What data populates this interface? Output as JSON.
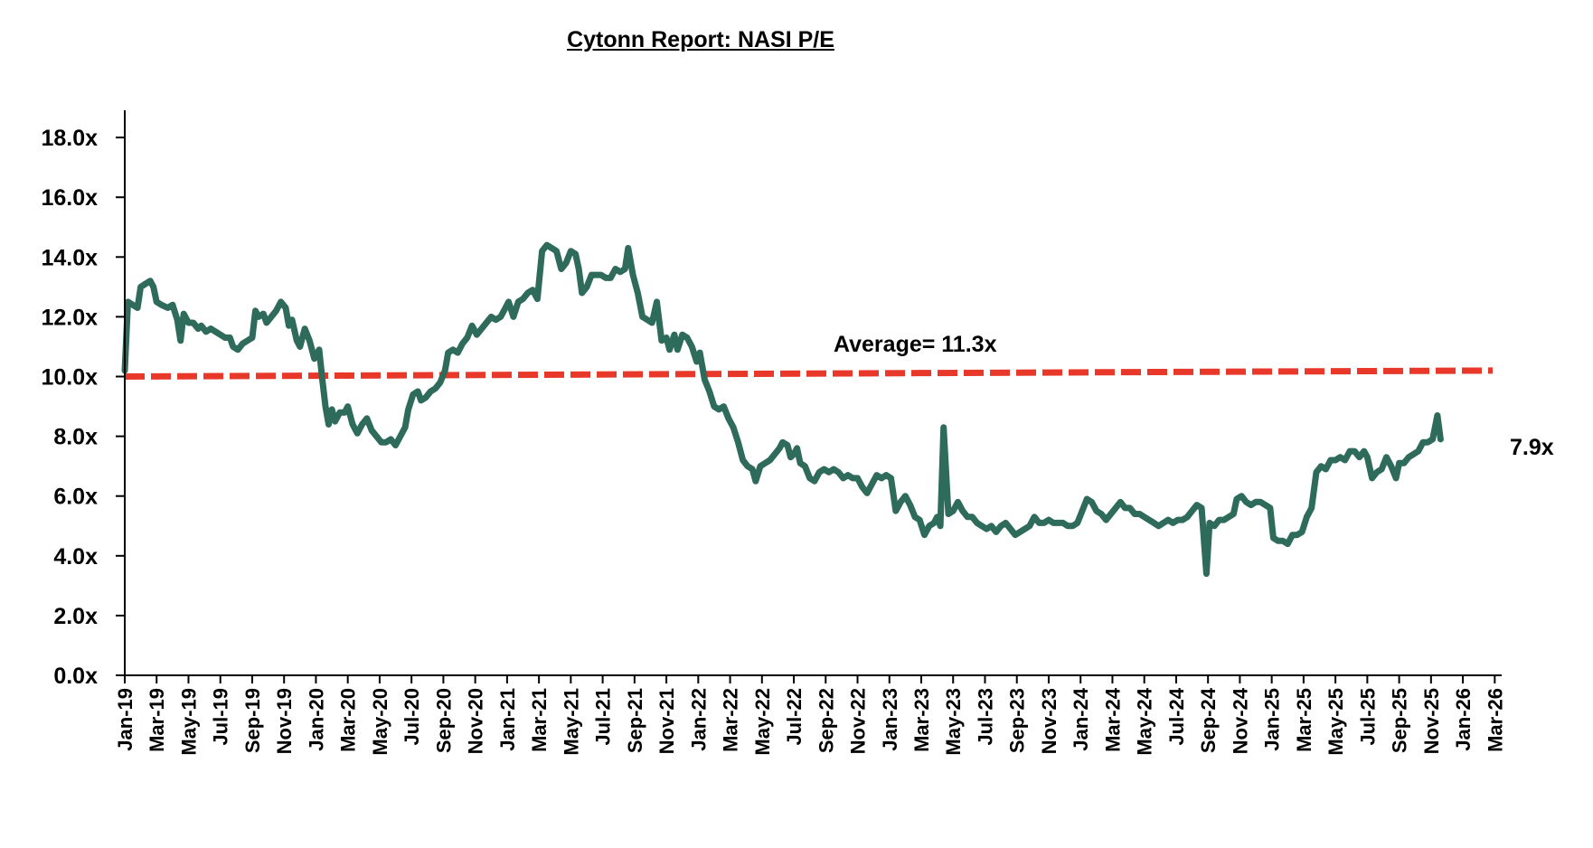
{
  "chart_data": {
    "type": "line",
    "title": "Cytonn Report: NASI P/E",
    "xlabel": "",
    "ylabel": "",
    "ylim": [
      0,
      19
    ],
    "yticks": [
      0,
      2,
      4,
      6,
      8,
      10,
      12,
      14,
      16,
      18
    ],
    "ytick_labels": [
      "0.0x",
      "2.0x",
      "4.0x",
      "6.0x",
      "8.0x",
      "10.0x",
      "12.0x",
      "14.0x",
      "16.0x",
      "18.0x"
    ],
    "x_start": "Jan-19",
    "x_unit": "months since Jan-19",
    "xlim": [
      0,
      87.5
    ],
    "xtick_labels": [
      "Jan-19",
      "Mar-19",
      "May-19",
      "Jul-19",
      "Sep-19",
      "Nov-19",
      "Jan-20",
      "Mar-20",
      "May-20",
      "Jul-20",
      "Sep-20",
      "Nov-20",
      "Jan-21",
      "Mar-21",
      "May-21",
      "Jul-21",
      "Sep-21",
      "Nov-21",
      "Jan-22",
      "Mar-22",
      "May-22",
      "Jul-22",
      "Sep-22",
      "Nov-22",
      "Jan-23",
      "Mar-23",
      "May-23",
      "Jul-23",
      "Sep-23",
      "Nov-23",
      "Jan-24",
      "Mar-24",
      "May-24",
      "Jul-24",
      "Sep-24",
      "Nov-24",
      "Jan-25",
      "Mar-25",
      "May-25",
      "Jul-25",
      "Sep-25",
      "Nov-25",
      "Jan-26",
      "Mar-26"
    ],
    "grid": false,
    "legend": "none",
    "series": [
      {
        "name": "NASI P/E",
        "color": "#2e6b5a",
        "points": [
          [
            0.0,
            10.2
          ],
          [
            0.2,
            12.5
          ],
          [
            0.5,
            12.4
          ],
          [
            0.8,
            12.3
          ],
          [
            1.0,
            13.0
          ],
          [
            1.3,
            13.1
          ],
          [
            1.6,
            13.2
          ],
          [
            1.8,
            13.0
          ],
          [
            2.0,
            12.5
          ],
          [
            2.3,
            12.4
          ],
          [
            2.7,
            12.3
          ],
          [
            3.0,
            12.4
          ],
          [
            3.3,
            11.9
          ],
          [
            3.5,
            11.2
          ],
          [
            3.7,
            12.1
          ],
          [
            4.0,
            11.8
          ],
          [
            4.3,
            11.8
          ],
          [
            4.6,
            11.6
          ],
          [
            4.8,
            11.7
          ],
          [
            5.1,
            11.5
          ],
          [
            5.4,
            11.6
          ],
          [
            5.7,
            11.5
          ],
          [
            6.0,
            11.4
          ],
          [
            6.3,
            11.3
          ],
          [
            6.6,
            11.3
          ],
          [
            6.8,
            11.0
          ],
          [
            7.1,
            10.9
          ],
          [
            7.4,
            11.1
          ],
          [
            7.7,
            11.2
          ],
          [
            8.0,
            11.3
          ],
          [
            8.2,
            12.2
          ],
          [
            8.4,
            12.0
          ],
          [
            8.7,
            12.1
          ],
          [
            8.9,
            11.8
          ],
          [
            9.2,
            12.0
          ],
          [
            9.5,
            12.2
          ],
          [
            9.8,
            12.5
          ],
          [
            10.1,
            12.3
          ],
          [
            10.3,
            11.7
          ],
          [
            10.5,
            11.9
          ],
          [
            10.8,
            11.2
          ],
          [
            11.0,
            11.0
          ],
          [
            11.3,
            11.6
          ],
          [
            11.6,
            11.2
          ],
          [
            11.9,
            10.6
          ],
          [
            12.2,
            10.9
          ],
          [
            12.4,
            9.9
          ],
          [
            12.6,
            9.0
          ],
          [
            12.8,
            8.4
          ],
          [
            13.0,
            8.9
          ],
          [
            13.2,
            8.5
          ],
          [
            13.5,
            8.8
          ],
          [
            13.8,
            8.8
          ],
          [
            14.0,
            9.0
          ],
          [
            14.3,
            8.4
          ],
          [
            14.6,
            8.1
          ],
          [
            14.9,
            8.4
          ],
          [
            15.2,
            8.6
          ],
          [
            15.5,
            8.2
          ],
          [
            15.8,
            8.0
          ],
          [
            16.1,
            7.8
          ],
          [
            16.4,
            7.8
          ],
          [
            16.7,
            7.9
          ],
          [
            17.0,
            7.7
          ],
          [
            17.3,
            8.0
          ],
          [
            17.6,
            8.3
          ],
          [
            17.8,
            8.9
          ],
          [
            18.1,
            9.4
          ],
          [
            18.4,
            9.5
          ],
          [
            18.6,
            9.2
          ],
          [
            18.9,
            9.3
          ],
          [
            19.2,
            9.5
          ],
          [
            19.5,
            9.6
          ],
          [
            19.8,
            9.8
          ],
          [
            20.1,
            10.2
          ],
          [
            20.3,
            10.8
          ],
          [
            20.6,
            10.9
          ],
          [
            20.9,
            10.8
          ],
          [
            21.2,
            11.1
          ],
          [
            21.5,
            11.3
          ],
          [
            21.8,
            11.7
          ],
          [
            22.1,
            11.4
          ],
          [
            22.4,
            11.6
          ],
          [
            22.7,
            11.8
          ],
          [
            23.0,
            12.0
          ],
          [
            23.3,
            11.9
          ],
          [
            23.6,
            12.0
          ],
          [
            23.9,
            12.3
          ],
          [
            24.1,
            12.5
          ],
          [
            24.4,
            12.0
          ],
          [
            24.7,
            12.5
          ],
          [
            25.0,
            12.6
          ],
          [
            25.3,
            12.8
          ],
          [
            25.6,
            12.9
          ],
          [
            25.9,
            12.6
          ],
          [
            26.2,
            14.2
          ],
          [
            26.5,
            14.4
          ],
          [
            26.8,
            14.3
          ],
          [
            27.1,
            14.2
          ],
          [
            27.4,
            13.6
          ],
          [
            27.7,
            13.8
          ],
          [
            28.0,
            14.2
          ],
          [
            28.3,
            14.1
          ],
          [
            28.5,
            13.6
          ],
          [
            28.7,
            12.8
          ],
          [
            29.0,
            13.0
          ],
          [
            29.3,
            13.4
          ],
          [
            29.6,
            13.4
          ],
          [
            29.9,
            13.4
          ],
          [
            30.2,
            13.3
          ],
          [
            30.5,
            13.3
          ],
          [
            30.8,
            13.6
          ],
          [
            31.1,
            13.5
          ],
          [
            31.4,
            13.6
          ],
          [
            31.6,
            14.3
          ],
          [
            31.9,
            13.4
          ],
          [
            32.2,
            12.8
          ],
          [
            32.5,
            12.0
          ],
          [
            32.8,
            11.9
          ],
          [
            33.1,
            11.8
          ],
          [
            33.4,
            12.5
          ],
          [
            33.7,
            11.2
          ],
          [
            34.0,
            11.3
          ],
          [
            34.2,
            10.9
          ],
          [
            34.5,
            11.4
          ],
          [
            34.7,
            10.9
          ],
          [
            35.0,
            11.4
          ],
          [
            35.3,
            11.3
          ],
          [
            35.6,
            11.0
          ],
          [
            35.9,
            10.5
          ],
          [
            36.1,
            10.8
          ],
          [
            36.4,
            9.9
          ],
          [
            36.7,
            9.5
          ],
          [
            37.0,
            9.0
          ],
          [
            37.3,
            8.9
          ],
          [
            37.6,
            9.0
          ],
          [
            37.9,
            8.6
          ],
          [
            38.2,
            8.3
          ],
          [
            38.5,
            7.8
          ],
          [
            38.8,
            7.2
          ],
          [
            39.1,
            7.0
          ],
          [
            39.4,
            6.9
          ],
          [
            39.6,
            6.5
          ],
          [
            39.9,
            7.0
          ],
          [
            40.2,
            7.1
          ],
          [
            40.5,
            7.2
          ],
          [
            40.8,
            7.4
          ],
          [
            41.1,
            7.6
          ],
          [
            41.3,
            7.8
          ],
          [
            41.6,
            7.7
          ],
          [
            41.8,
            7.3
          ],
          [
            42.0,
            7.4
          ],
          [
            42.2,
            7.6
          ],
          [
            42.4,
            7.1
          ],
          [
            42.7,
            7.0
          ],
          [
            43.0,
            6.6
          ],
          [
            43.3,
            6.5
          ],
          [
            43.6,
            6.8
          ],
          [
            43.9,
            6.9
          ],
          [
            44.2,
            6.8
          ],
          [
            44.5,
            6.9
          ],
          [
            44.8,
            6.8
          ],
          [
            45.1,
            6.6
          ],
          [
            45.4,
            6.7
          ],
          [
            45.7,
            6.6
          ],
          [
            46.0,
            6.6
          ],
          [
            46.3,
            6.3
          ],
          [
            46.6,
            6.1
          ],
          [
            46.9,
            6.4
          ],
          [
            47.2,
            6.7
          ],
          [
            47.5,
            6.6
          ],
          [
            47.8,
            6.7
          ],
          [
            48.1,
            6.6
          ],
          [
            48.4,
            5.5
          ],
          [
            48.7,
            5.8
          ],
          [
            49.0,
            6.0
          ],
          [
            49.3,
            5.7
          ],
          [
            49.6,
            5.3
          ],
          [
            49.9,
            5.2
          ],
          [
            50.2,
            4.7
          ],
          [
            50.5,
            5.0
          ],
          [
            50.8,
            5.1
          ],
          [
            51.0,
            5.3
          ],
          [
            51.2,
            5.0
          ],
          [
            51.4,
            8.3
          ],
          [
            51.7,
            5.4
          ],
          [
            52.0,
            5.5
          ],
          [
            52.3,
            5.8
          ],
          [
            52.6,
            5.5
          ],
          [
            52.9,
            5.3
          ],
          [
            53.2,
            5.3
          ],
          [
            53.5,
            5.1
          ],
          [
            53.8,
            5.0
          ],
          [
            54.1,
            4.9
          ],
          [
            54.4,
            5.0
          ],
          [
            54.7,
            4.8
          ],
          [
            55.0,
            5.0
          ],
          [
            55.3,
            5.1
          ],
          [
            55.6,
            4.9
          ],
          [
            55.9,
            4.7
          ],
          [
            56.2,
            4.8
          ],
          [
            56.5,
            4.9
          ],
          [
            56.8,
            5.0
          ],
          [
            57.1,
            5.3
          ],
          [
            57.4,
            5.1
          ],
          [
            57.7,
            5.1
          ],
          [
            58.0,
            5.2
          ],
          [
            58.3,
            5.1
          ],
          [
            58.6,
            5.1
          ],
          [
            58.9,
            5.1
          ],
          [
            59.2,
            5.0
          ],
          [
            59.5,
            5.0
          ],
          [
            59.8,
            5.1
          ],
          [
            60.1,
            5.5
          ],
          [
            60.4,
            5.9
          ],
          [
            60.7,
            5.8
          ],
          [
            61.0,
            5.5
          ],
          [
            61.3,
            5.4
          ],
          [
            61.6,
            5.2
          ],
          [
            61.9,
            5.4
          ],
          [
            62.2,
            5.6
          ],
          [
            62.5,
            5.8
          ],
          [
            62.8,
            5.6
          ],
          [
            63.1,
            5.6
          ],
          [
            63.4,
            5.4
          ],
          [
            63.7,
            5.4
          ],
          [
            64.0,
            5.3
          ],
          [
            64.3,
            5.2
          ],
          [
            64.6,
            5.1
          ],
          [
            64.9,
            5.0
          ],
          [
            65.2,
            5.1
          ],
          [
            65.5,
            5.2
          ],
          [
            65.8,
            5.1
          ],
          [
            66.1,
            5.2
          ],
          [
            66.4,
            5.2
          ],
          [
            66.7,
            5.3
          ],
          [
            67.0,
            5.5
          ],
          [
            67.3,
            5.7
          ],
          [
            67.6,
            5.6
          ],
          [
            67.9,
            3.4
          ],
          [
            68.1,
            5.1
          ],
          [
            68.4,
            5.0
          ],
          [
            68.7,
            5.2
          ],
          [
            69.0,
            5.2
          ],
          [
            69.3,
            5.3
          ],
          [
            69.6,
            5.4
          ],
          [
            69.8,
            5.9
          ],
          [
            70.1,
            6.0
          ],
          [
            70.4,
            5.8
          ],
          [
            70.7,
            5.7
          ],
          [
            71.0,
            5.8
          ],
          [
            71.3,
            5.8
          ],
          [
            71.6,
            5.7
          ],
          [
            71.9,
            5.6
          ],
          [
            72.1,
            4.6
          ],
          [
            72.4,
            4.5
          ],
          [
            72.7,
            4.5
          ],
          [
            73.0,
            4.4
          ],
          [
            73.3,
            4.7
          ],
          [
            73.6,
            4.7
          ],
          [
            73.9,
            4.8
          ],
          [
            74.2,
            5.3
          ],
          [
            74.5,
            5.6
          ],
          [
            74.8,
            6.8
          ],
          [
            75.1,
            7.0
          ],
          [
            75.4,
            6.9
          ],
          [
            75.7,
            7.2
          ],
          [
            76.0,
            7.2
          ],
          [
            76.3,
            7.3
          ],
          [
            76.6,
            7.2
          ],
          [
            76.9,
            7.5
          ],
          [
            77.2,
            7.5
          ],
          [
            77.5,
            7.3
          ],
          [
            77.8,
            7.5
          ],
          [
            78.0,
            7.3
          ],
          [
            78.3,
            6.6
          ],
          [
            78.6,
            6.8
          ],
          [
            78.9,
            6.9
          ],
          [
            79.2,
            7.3
          ],
          [
            79.5,
            7.0
          ],
          [
            79.8,
            6.6
          ],
          [
            80.0,
            7.1
          ],
          [
            80.3,
            7.1
          ],
          [
            80.6,
            7.3
          ],
          [
            80.9,
            7.4
          ],
          [
            81.2,
            7.5
          ],
          [
            81.5,
            7.8
          ],
          [
            81.8,
            7.8
          ],
          [
            82.1,
            7.9
          ],
          [
            82.4,
            8.7
          ],
          [
            82.6,
            7.9
          ]
        ]
      }
    ],
    "average_line": {
      "label": "Average= 11.3x",
      "value": 11.3,
      "drawn_start": 10.0,
      "drawn_end": 10.2,
      "color": "#e8382a",
      "style": "dashed"
    },
    "end_label": "7.9x"
  }
}
